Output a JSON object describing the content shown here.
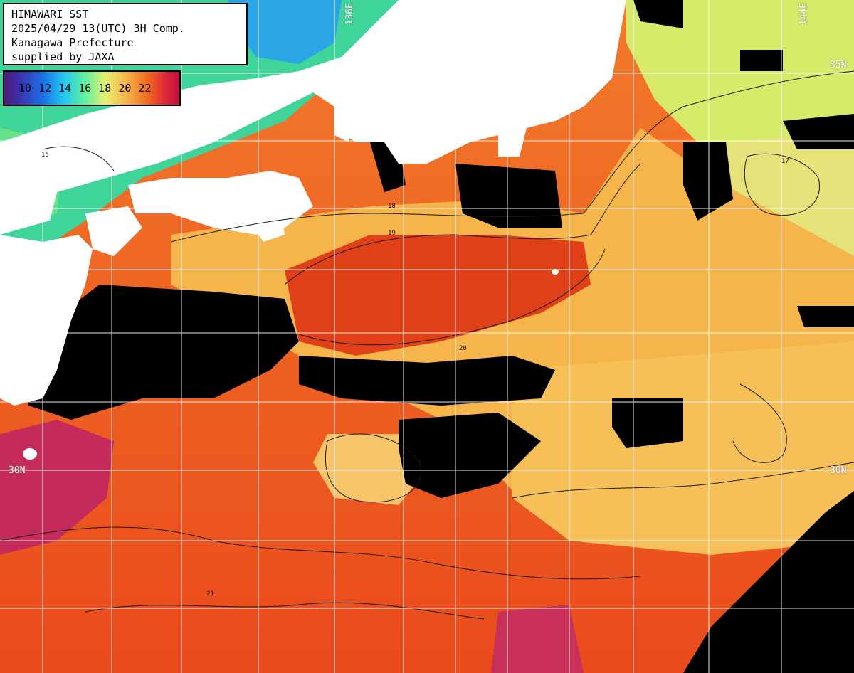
{
  "header": {
    "line1": "HIMAWARI SST",
    "line2": "2025/04/29 13(UTC) 3H Comp.",
    "line3": "Kanagawa Prefecture",
    "line4": "supplied by JAXA"
  },
  "legend": {
    "labels": [
      "10",
      "12",
      "14",
      "16",
      "18",
      "20",
      "22"
    ]
  },
  "grid_labels": {
    "lon_136": "136E",
    "lon_144": "144E",
    "lat_30_left": "30N",
    "lat_30_right": "30N",
    "lat_upper_right": "35N"
  },
  "isotherm_labels": [
    "15",
    "17",
    "18",
    "19",
    "20",
    "21"
  ],
  "colors": {
    "land": "#ffffff",
    "cloud": "#000000",
    "grid": "#ffffff"
  }
}
